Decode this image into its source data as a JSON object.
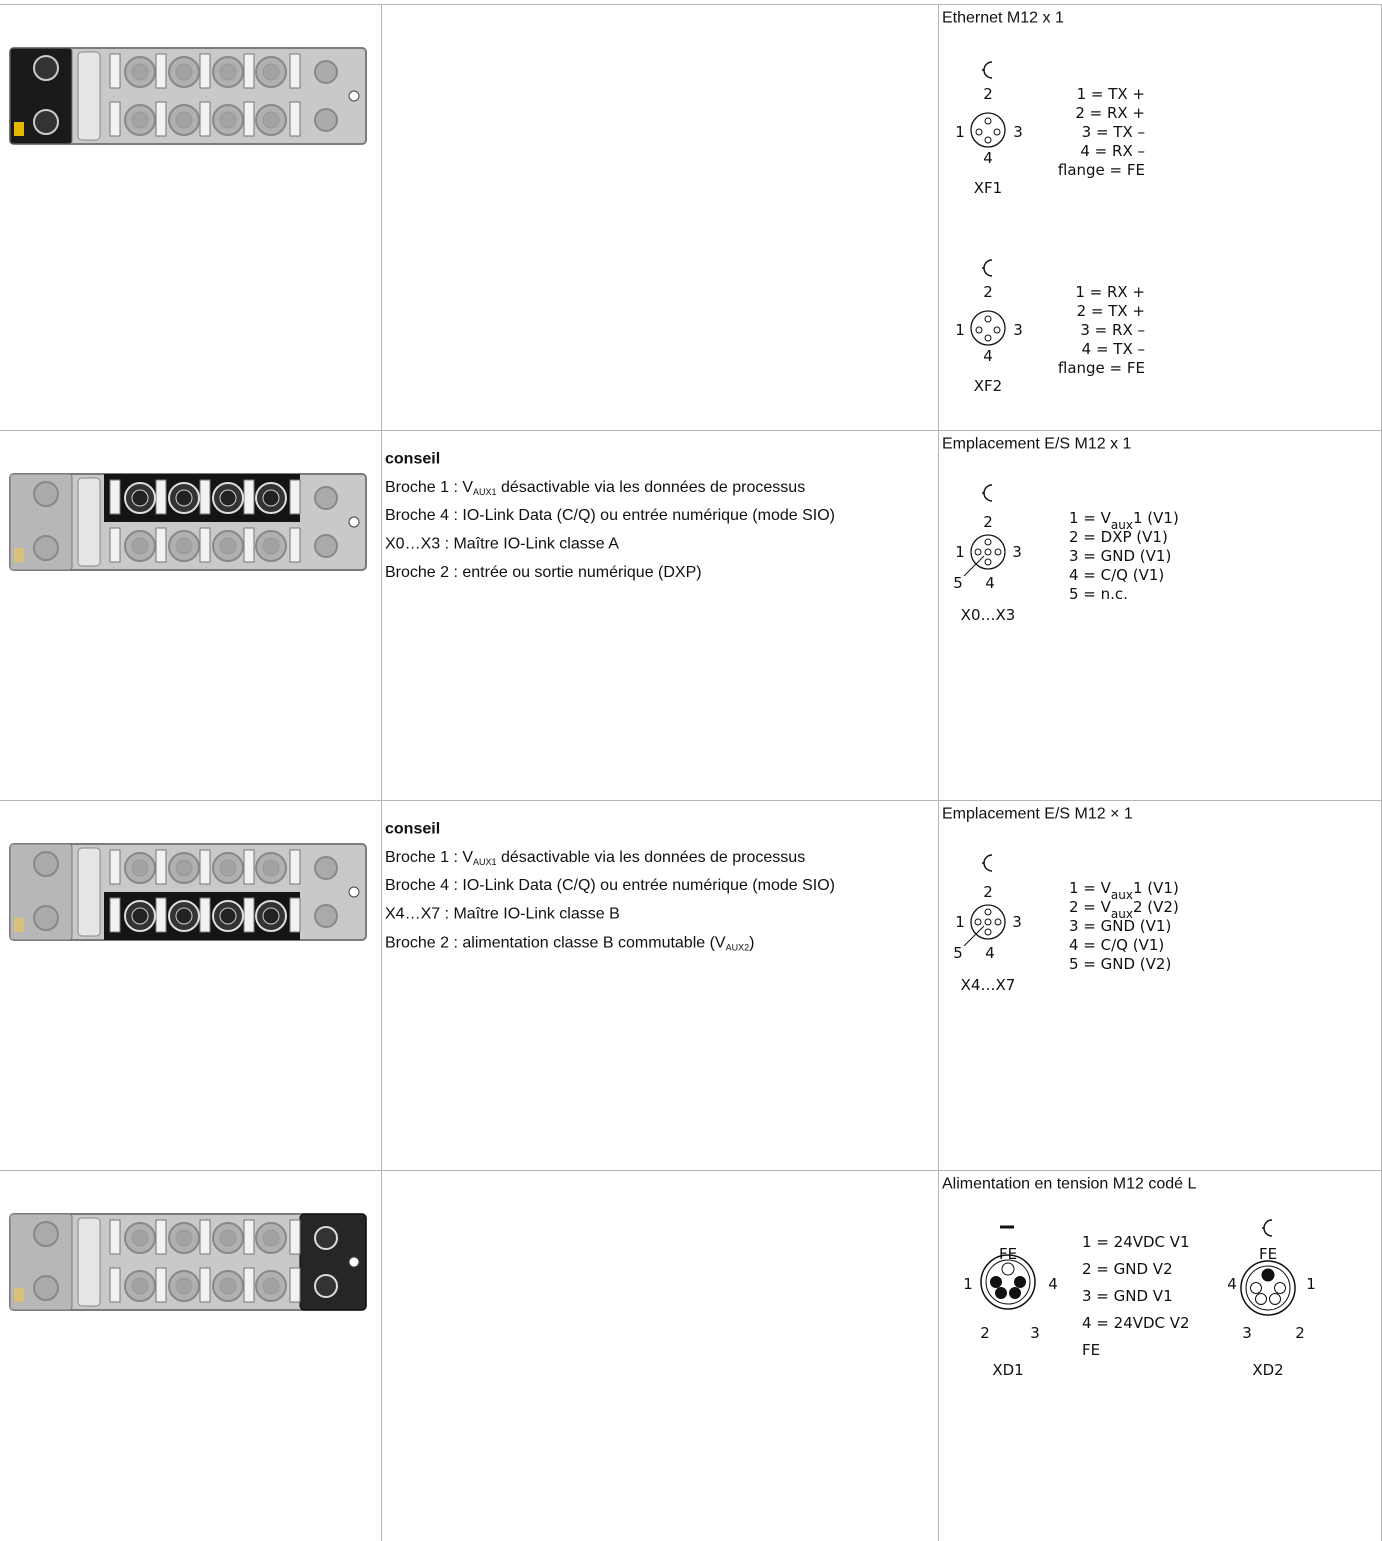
{
  "rows": [
    {
      "right": {
        "title": "Ethernet M12 x 1",
        "blocks": [
          {
            "connector": {
              "name": "XF1",
              "numbers": [
                "2",
                "1",
                "3",
                "4"
              ]
            },
            "pins": [
              "1 = TX +",
              "2 = RX +",
              "3 = TX –",
              "4 = RX –",
              "flange = FE"
            ]
          },
          {
            "connector": {
              "name": "XF2",
              "numbers": [
                "2",
                "1",
                "3",
                "4"
              ]
            },
            "pins": [
              "1 = RX +",
              "2 = TX +",
              "3 = RX –",
              "4 = TX –",
              "flange = FE"
            ]
          }
        ]
      }
    },
    {
      "middle": {
        "heading": "conseil",
        "lines": [
          {
            "pre": "Broche 1 : V",
            "sub": "AUX1",
            "post": " désactivable via les données de processus"
          },
          "Broche 4 : IO-Link Data (C/Q) ou entrée numérique (mode SIO)",
          "X0…X3 : Maître IO-Link classe A",
          "Broche 2 : entrée ou sortie numérique (DXP)"
        ]
      },
      "right": {
        "title": "Emplacement E/S M12 x 1",
        "blocks": [
          {
            "connector": {
              "name": "X0…X3",
              "numbers": [
                "2",
                "1",
                "3",
                "5",
                "4"
              ]
            },
            "pins": [
              {
                "pre": "1 = V",
                "sub": "aux",
                "post": "1 (V1)"
              },
              "2 = DXP (V1)",
              "3 = GND (V1)",
              "4 = C/Q (V1)",
              "5 = n.c."
            ]
          }
        ]
      }
    },
    {
      "middle": {
        "heading": "conseil",
        "lines": [
          {
            "pre": "Broche 1 : V",
            "sub": "AUX1",
            "post": " désactivable via les données de processus"
          },
          "Broche 4 : IO-Link Data (C/Q) ou entrée numérique (mode SIO)",
          "X4…X7 : Maître IO-Link classe B",
          {
            "pre": "Broche 2 : alimentation classe B commutable (V",
            "sub": "AUX2",
            "post": ")"
          }
        ]
      },
      "right": {
        "title": "Emplacement E/S M12 × 1",
        "blocks": [
          {
            "connector": {
              "name": "X4…X7",
              "numbers": [
                "2",
                "1",
                "3",
                "5",
                "4"
              ]
            },
            "pins": [
              {
                "pre": "1 = V",
                "sub": "aux",
                "post": "1 (V1)"
              },
              {
                "pre": "2 = V",
                "sub": "aux",
                "post": "2 (V2)"
              },
              "3 = GND (V1)",
              "4 = C/Q (V1)",
              "5 = GND (V2)"
            ]
          }
        ]
      }
    },
    {
      "right": {
        "title": "Alimentation en tension M12 codé L",
        "blocks": [
          {
            "connector": {
              "name": "XD1",
              "top": "FE",
              "numbers": [
                "1",
                "4",
                "2",
                "3"
              ]
            },
            "pins": [
              "1 = 24VDC V1",
              "2 = GND V2",
              "3 = GND V1",
              "4 = 24VDC V2",
              "FE"
            ]
          },
          {
            "connector": {
              "name": "XD2",
              "top": "FE",
              "numbers": [
                "4",
                "1",
                "3",
                "2"
              ]
            }
          }
        ]
      }
    }
  ]
}
